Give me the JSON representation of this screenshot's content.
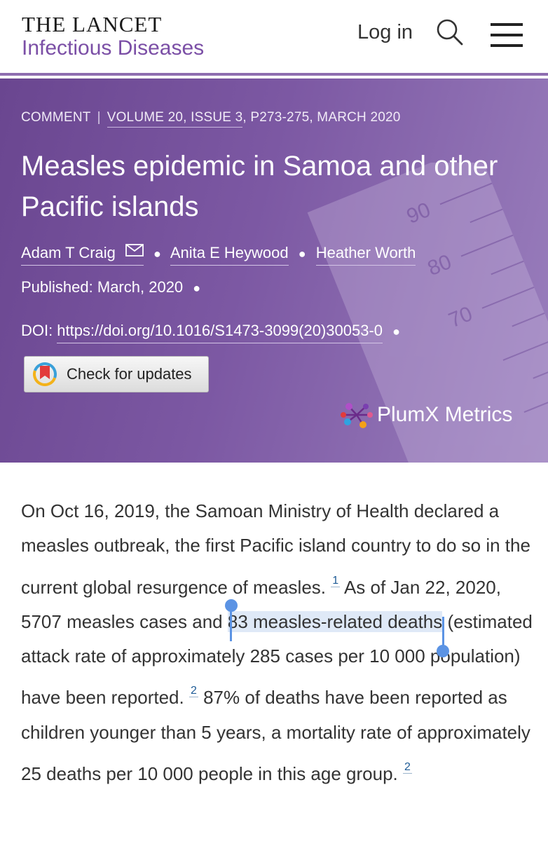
{
  "header": {
    "brand_title": "THE LANCET",
    "brand_subtitle": "Infectious Diseases",
    "login_label": "Log in",
    "search_icon": "search-icon",
    "menu_icon": "hamburger-menu-icon"
  },
  "hero": {
    "article_type": "COMMENT",
    "separator": "|",
    "volume_info": "VOLUME 20, ISSUE 3",
    "pages_date": ", P273-275, MARCH 2020",
    "title": "Measles epidemic in Samoa and other Pacific islands",
    "authors": [
      "Adam T Craig",
      "Anita E Heywood",
      "Heather Worth"
    ],
    "published_label": "Published:",
    "published_date": "March, 2020",
    "doi_label": "DOI:",
    "doi_link": "https://doi.org/10.1016/S1473-3099(20)30053-0",
    "check_updates_label": "Check for updates",
    "plumx_label": "PlumX Metrics",
    "colors": {
      "hero_start": "#6a4690",
      "hero_end": "#9a7fbd",
      "brand_purple": "#7b4fa6"
    }
  },
  "body": {
    "p1": "On Oct 16, 2019, the Samoan Ministry of Health declared a measles outbreak, the first Pacific island country to do so in the current global resurgence of measles.",
    "ref1": "1",
    "p2a": " As of Jan 22, 2020, 5707 measles cases and ",
    "p2_highlight": "83 measles-related deaths",
    "p2b": " (estimated attack rate of approximately 285 cases per 10 000 population) have been reported.",
    "ref2": "2",
    "p3": " 87% of deaths have been reported as children younger than 5 years, a mortality rate of approximately 25 deaths per 10 000 people in this age group.",
    "ref3": "2"
  }
}
